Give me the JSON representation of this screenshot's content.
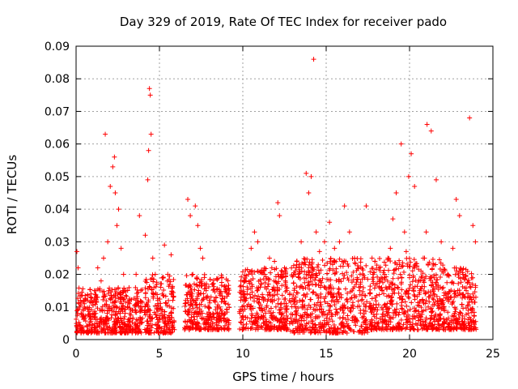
{
  "chart_data": {
    "type": "scatter",
    "title": "Day 329 of 2019, Rate Of TEC Index for receiver pado",
    "xlabel": "GPS time / hours",
    "ylabel": "ROTI / TECUs",
    "xlim": [
      0,
      25
    ],
    "ylim": [
      0,
      0.09
    ],
    "x_ticks": [
      "0",
      "5",
      "10",
      "15",
      "20",
      "25"
    ],
    "y_ticks": [
      "0",
      "0.01",
      "0.02",
      "0.03",
      "0.04",
      "0.05",
      "0.06",
      "0.07",
      "0.08",
      "0.09"
    ],
    "grid": true,
    "legend": "none",
    "marker": "plus",
    "color": "#ff0000",
    "series": [
      {
        "x": [
          0.05,
          0.12,
          0.3,
          0.5,
          0.7,
          0.9,
          1.1,
          1.3,
          1.5,
          1.65,
          1.75,
          1.9,
          2.05,
          2.2,
          2.3,
          2.35,
          2.45,
          2.55,
          2.7,
          2.85,
          3.0,
          3.2,
          3.4,
          3.6,
          3.8,
          4.15,
          4.3,
          4.35,
          4.4,
          4.45,
          4.5,
          4.6,
          4.75,
          4.9,
          5.1,
          5.3,
          5.5,
          5.7,
          6.7,
          6.85,
          7.0,
          7.15,
          7.3,
          7.45,
          7.6,
          7.8,
          8.2,
          8.4,
          8.6,
          8.9,
          9.9,
          10.2,
          10.5,
          10.7,
          10.9,
          11.1,
          11.3,
          11.6,
          11.9,
          12.1,
          12.2,
          12.5,
          12.8,
          13.2,
          13.5,
          13.8,
          13.95,
          14.1,
          14.25,
          14.4,
          14.6,
          14.9,
          15.2,
          15.5,
          15.8,
          16.1,
          16.4,
          16.7,
          17.0,
          17.4,
          17.8,
          18.2,
          18.5,
          18.7,
          18.85,
          19.0,
          19.2,
          19.5,
          19.7,
          19.8,
          19.95,
          20.1,
          20.3,
          20.6,
          20.9,
          21.0,
          21.05,
          21.3,
          21.6,
          21.9,
          22.3,
          22.6,
          22.8,
          23.0,
          23.2,
          23.4,
          23.6,
          23.8,
          23.95
        ],
        "y": [
          0.027,
          0.022,
          0.008,
          0.01,
          0.012,
          0.007,
          0.015,
          0.022,
          0.018,
          0.025,
          0.063,
          0.03,
          0.047,
          0.053,
          0.056,
          0.045,
          0.035,
          0.04,
          0.028,
          0.02,
          0.015,
          0.011,
          0.009,
          0.02,
          0.038,
          0.032,
          0.049,
          0.058,
          0.077,
          0.075,
          0.063,
          0.025,
          0.02,
          0.012,
          0.008,
          0.029,
          0.02,
          0.026,
          0.043,
          0.038,
          0.02,
          0.041,
          0.035,
          0.028,
          0.025,
          0.015,
          0.017,
          0.013,
          0.01,
          0.008,
          0.013,
          0.018,
          0.028,
          0.033,
          0.03,
          0.017,
          0.02,
          0.025,
          0.024,
          0.042,
          0.038,
          0.022,
          0.012,
          0.022,
          0.03,
          0.051,
          0.045,
          0.05,
          0.086,
          0.033,
          0.027,
          0.03,
          0.036,
          0.028,
          0.03,
          0.041,
          0.033,
          0.025,
          0.015,
          0.041,
          0.02,
          0.018,
          0.02,
          0.025,
          0.028,
          0.037,
          0.045,
          0.06,
          0.033,
          0.027,
          0.05,
          0.057,
          0.047,
          0.015,
          0.025,
          0.033,
          0.066,
          0.064,
          0.049,
          0.03,
          0.02,
          0.028,
          0.043,
          0.038,
          0.02,
          0.015,
          0.068,
          0.035,
          0.03
        ]
      }
    ],
    "background_cloud": {
      "description_excluded": true,
      "clusters": [
        {
          "x_range": [
            0.0,
            4.0
          ],
          "y_range": [
            0.002,
            0.016
          ]
        },
        {
          "x_range": [
            4.1,
            5.9
          ],
          "y_range": [
            0.002,
            0.02
          ]
        },
        {
          "x_range": [
            6.5,
            9.2
          ],
          "y_range": [
            0.003,
            0.02
          ]
        },
        {
          "x_range": [
            9.8,
            12.7
          ],
          "y_range": [
            0.003,
            0.022
          ]
        },
        {
          "x_range": [
            12.8,
            17.5
          ],
          "y_range": [
            0.002,
            0.025
          ]
        },
        {
          "x_range": [
            17.6,
            22.0
          ],
          "y_range": [
            0.003,
            0.025
          ]
        },
        {
          "x_range": [
            22.0,
            24.0
          ],
          "y_range": [
            0.003,
            0.022
          ]
        }
      ]
    }
  }
}
